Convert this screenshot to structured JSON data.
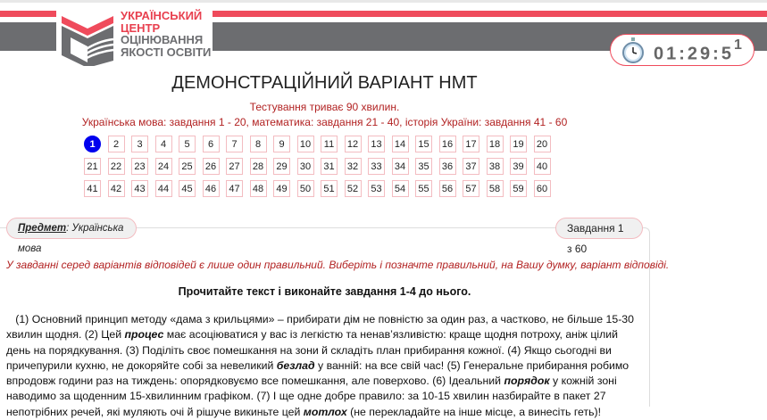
{
  "logo": {
    "line1": "УКРАЇНСЬКИЙ",
    "line2": "ЦЕНТР",
    "line3": "ОЦІНЮВАННЯ",
    "line4": "ЯКОСТІ ОСВІТИ"
  },
  "timer": {
    "time": "01:29:5",
    "last_digit": "1",
    "icon": "stopwatch-icon"
  },
  "title": "ДЕМОНСТРАЦІЙНИЙ ВАРІАНТ НМТ",
  "duration": "Тестування триває 90 хвилин.",
  "sections": "Українська мова: завдання 1 - 20, математика: завдання 21 - 40, історія України: завдання 41 - 60",
  "questions": {
    "rows": [
      [
        "1",
        "2",
        "3",
        "4",
        "5",
        "6",
        "7",
        "8",
        "9",
        "10",
        "11",
        "12",
        "13",
        "14",
        "15",
        "16",
        "17",
        "18",
        "19",
        "20"
      ],
      [
        "21",
        "22",
        "23",
        "24",
        "25",
        "26",
        "27",
        "28",
        "29",
        "30",
        "31",
        "32",
        "33",
        "34",
        "35",
        "36",
        "37",
        "38",
        "39",
        "40"
      ],
      [
        "41",
        "42",
        "43",
        "44",
        "45",
        "46",
        "47",
        "48",
        "49",
        "50",
        "51",
        "52",
        "53",
        "54",
        "55",
        "56",
        "57",
        "58",
        "59",
        "60"
      ]
    ],
    "active": "1"
  },
  "subject": {
    "label": "Предмет",
    "value": ": Українська мова"
  },
  "task_counter": "Завдання 1 з 60",
  "instruction": "У завданні серед варіантів відповідей є лише один правильний. Виберіть і позначте правильний, на Вашу думку, варіант відповіді.",
  "heading": "Прочитайте текст і виконайте завдання 1-4 до нього.",
  "text": {
    "s1": "   (1) Основний принцип методу «дама з крильцями» – прибирати дім не повністю за один раз, а частково, не більше 15-30 хвилин щодня. (2) Цей ",
    "w1": "процес",
    "s2": " має асоціюватися у вас із легкістю та ненав’язливістю: краще щодня потроху, аніж цілий день на порядкування. (3) Поділіть своє помешкання на зони й складіть план прибирання кожної. (4) Якщо сьогодні ви причепурили кухню, не докоряйте собі за невеликий ",
    "w2": "безлад",
    "s3": " у ванній: на все свій час! (5) Генеральне прибирання робимо впродовж години раз на тиждень: опорядковуємо все помешкання, але поверхово. (6) Ідеальний ",
    "w3": "порядок",
    "s4": " у кожній зоні наводимо за щоденним 15-хвилинним графіком. (7) І ще одне добре правило: за 10-15 хвилин назбирайте в пакет 27 непотрібних речей, які муляють очі й рішуче викиньте цей ",
    "w4": "мотлох",
    "s5": " (не перекладайте на інше місце, а винесіть геть)!"
  },
  "colors": {
    "accent_red": "#ef4b5c",
    "band_gray": "#6c6d70",
    "text_red": "#b22222",
    "active_blue": "#0000ee"
  }
}
